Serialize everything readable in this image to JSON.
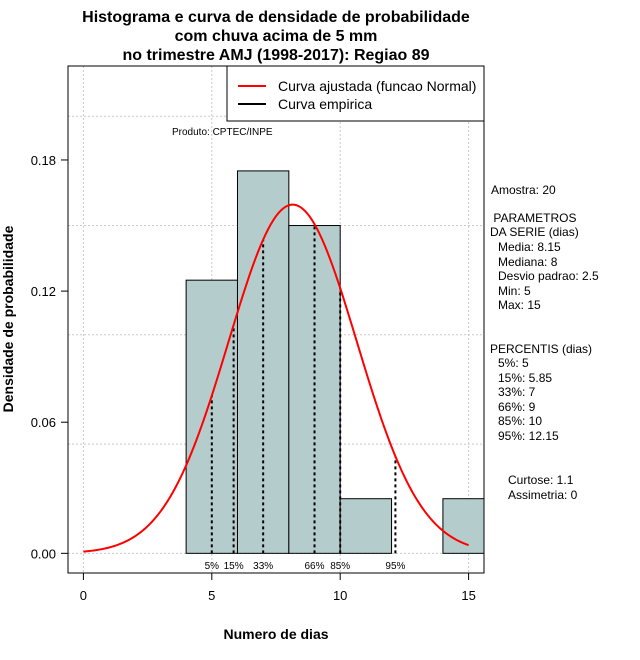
{
  "chart_data": {
    "type": "bar",
    "title_lines": [
      "Histograma e curva de densidade de probabilidade",
      "com chuva acima de 5 mm",
      "no trimestre AMJ (1998-2017): Regiao 89"
    ],
    "xlabel": "Numero de dias",
    "ylabel": "Densidade de probabilidade",
    "xlim": [
      -0.6,
      15.6
    ],
    "ylim": [
      -0.009,
      0.223
    ],
    "x_ticks": [
      0,
      5,
      10,
      15
    ],
    "x_tick_labels": [
      "0",
      "5",
      "10",
      "15"
    ],
    "y_ticks": [
      0.0,
      0.06,
      0.12,
      0.18
    ],
    "y_tick_labels": [
      "0.00",
      "0.06",
      "0.12",
      "0.18"
    ],
    "grid": true,
    "grid_x": [
      0,
      5,
      10,
      15
    ],
    "grid_y": [
      0.0,
      0.05,
      0.1,
      0.15,
      0.2
    ],
    "histogram": [
      {
        "x0": 4,
        "x1": 6,
        "density": 0.125
      },
      {
        "x0": 6,
        "x1": 8,
        "density": 0.175
      },
      {
        "x0": 8,
        "x1": 10,
        "density": 0.15
      },
      {
        "x0": 10,
        "x1": 12,
        "density": 0.025
      },
      {
        "x0": 14,
        "x1": 16,
        "density": 0.025
      }
    ],
    "bar_color": "#b5cccc",
    "curve_color": "#ff0000",
    "normal_mean": 8.15,
    "normal_sd": 2.5,
    "percentile_lines": [
      {
        "label": "5%",
        "x": 5
      },
      {
        "label": "15%",
        "x": 5.85
      },
      {
        "label": "33%",
        "x": 7
      },
      {
        "label": "66%",
        "x": 9
      },
      {
        "label": "85%",
        "x": 10
      },
      {
        "label": "95%",
        "x": 12.15
      }
    ],
    "legend": {
      "position": "top-right",
      "entries": [
        {
          "label": "Curva ajustada (funcao Normal)",
          "color": "#ff0000"
        },
        {
          "label": "Curva empirica",
          "color": "#000000"
        }
      ]
    },
    "annotation_product": "Produto: CPTEC/INPE"
  },
  "side_panel": {
    "amostra": "Amostra: 20",
    "parametros_title": " PARAMETROS\nDA SERIE (dias)",
    "parametros": [
      "Media: 8.15",
      "Mediana: 8",
      "Desvio padrao: 2.5",
      "Min: 5",
      "Max: 15"
    ],
    "percentis_title": "PERCENTIS (dias)",
    "percentis": [
      "5%: 5",
      "15%: 5.85",
      "33%: 7",
      "66%: 9",
      "85%: 10",
      "95%: 12.15"
    ],
    "curtose": "Curtose: 1.1",
    "assimetria": "Assimetria: 0"
  }
}
